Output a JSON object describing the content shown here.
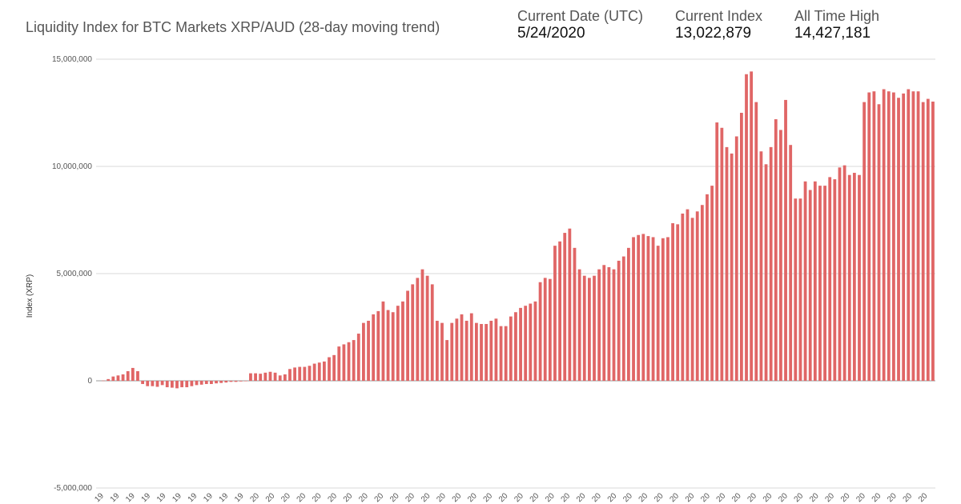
{
  "header": {
    "title": "Liquidity Index for BTC Markets XRP/AUD (28-day moving trend)",
    "current_date_label": "Current Date (UTC)",
    "current_date_value": "5/24/2020",
    "current_index_label": "Current Index",
    "current_index_value": "13,022,879",
    "ath_label": "All Time High",
    "ath_value": "14,427,181"
  },
  "colors": {
    "bar": "#e06666",
    "grid": "#d9d9d9",
    "zero": "#999999"
  },
  "chart_data": {
    "type": "bar",
    "title": "Liquidity Index for BTC Markets XRP/AUD (28-day moving trend)",
    "ylabel": "Index (XRP)",
    "ylim": [
      -5000000,
      15000000
    ],
    "yticks": [
      15000000,
      10000000,
      5000000,
      0,
      -5000000
    ],
    "ytick_labels": [
      "15,000,000",
      "10,000,000",
      "5,000,000",
      "0",
      "-5,000,000"
    ],
    "grid": true,
    "legend": "none",
    "values": [
      10000,
      80000,
      200000,
      250000,
      300000,
      450000,
      600000,
      450000,
      -150000,
      -250000,
      -250000,
      -280000,
      -200000,
      -300000,
      -320000,
      -350000,
      -300000,
      -300000,
      -250000,
      -200000,
      -180000,
      -150000,
      -150000,
      -120000,
      -100000,
      -80000,
      -50000,
      -50000,
      -30000,
      -20000,
      350000,
      350000,
      330000,
      380000,
      420000,
      380000,
      250000,
      300000,
      550000,
      620000,
      650000,
      650000,
      700000,
      800000,
      850000,
      900000,
      1100000,
      1200000,
      1600000,
      1700000,
      1800000,
      1900000,
      2200000,
      2700000,
      2800000,
      3100000,
      3250000,
      3700000,
      3300000,
      3200000,
      3500000,
      3700000,
      4200000,
      4500000,
      4800000,
      5200000,
      4900000,
      4500000,
      2800000,
      2700000,
      1900000,
      2700000,
      2900000,
      3100000,
      2800000,
      3150000,
      2700000,
      2650000,
      2650000,
      2800000,
      2900000,
      2550000,
      2550000,
      3000000,
      3200000,
      3400000,
      3500000,
      3600000,
      3700000,
      4600000,
      4800000,
      4750000,
      6300000,
      6500000,
      6900000,
      7100000,
      6200000,
      5200000,
      4900000,
      4800000,
      4900000,
      5200000,
      5400000,
      5300000,
      5200000,
      5600000,
      5800000,
      6200000,
      6700000,
      6800000,
      6850000,
      6750000,
      6700000,
      6300000,
      6650000,
      6700000,
      7350000,
      7300000,
      7800000,
      8000000,
      7600000,
      7900000,
      8200000,
      8700000,
      9100000,
      12050000,
      11800000,
      10900000,
      10600000,
      11400000,
      12500000,
      14300000,
      14427181,
      13000000,
      10700000,
      10100000,
      10900000,
      12200000,
      11700000,
      13100000,
      11000000,
      8500000,
      8500000,
      9300000,
      8900000,
      9300000,
      9100000,
      9100000,
      9500000,
      9400000,
      9950000,
      10050000,
      9600000,
      9700000,
      9600000,
      13000000,
      13450000,
      13500000,
      12900000,
      13600000,
      13500000,
      13450000,
      13200000,
      13400000,
      13600000,
      13500000,
      13500000,
      13000000,
      13150000,
      13022879
    ],
    "x_tick_labels": [
      "19",
      "19",
      "19",
      "19",
      "19",
      "19",
      "19",
      "19",
      "19",
      "19",
      "20",
      "20",
      "20",
      "20",
      "20",
      "20",
      "20",
      "20",
      "20",
      "20",
      "20",
      "20",
      "20",
      "20",
      "20",
      "20",
      "20",
      "20",
      "20",
      "20",
      "20",
      "20",
      "20",
      "20",
      "20",
      "20",
      "20",
      "20",
      "20",
      "20",
      "20",
      "20",
      "20",
      "20",
      "20",
      "20",
      "20",
      "20",
      "20",
      "20",
      "20",
      "20",
      "20",
      "20"
    ]
  }
}
